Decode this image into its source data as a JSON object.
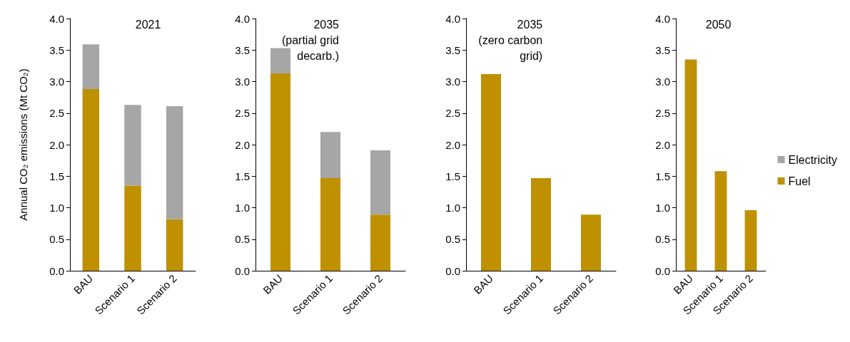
{
  "chart_data": [
    {
      "type": "bar",
      "title": "2021",
      "ylabel": "Annual CO₂ emissions (Mt CO₂)",
      "categories": [
        "BAU",
        "Scenario 1",
        "Scenario 2"
      ],
      "stacked": true,
      "series": [
        {
          "color": "#bf9000",
          "values": [
            2.88,
            1.35,
            0.82
          ]
        },
        {
          "color": "#a6a6a6",
          "values": [
            0.71,
            1.28,
            1.79
          ]
        }
      ],
      "ylim": [
        0,
        4
      ],
      "yticks": [
        {
          "value": 0,
          "label": "0.0"
        },
        0.5,
        {
          "value": 1,
          "label": "1.0"
        },
        1.5,
        {
          "value": 2,
          "label": "2.0"
        },
        2.5,
        {
          "value": 3,
          "label": "3.0"
        },
        3.5,
        {
          "value": 4,
          "label": "4.0"
        }
      ],
      "grid": false,
      "legend": false
    },
    {
      "type": "bar",
      "title": "2035\n(partial grid\ndecarb.)",
      "categories": [
        "BAU",
        "Scenario 1",
        "Scenario 2"
      ],
      "stacked": true,
      "series": [
        {
          "color": "#bf9000",
          "values": [
            3.13,
            1.47,
            0.89
          ]
        },
        {
          "color": "#a6a6a6",
          "values": [
            0.4,
            0.73,
            1.02
          ]
        }
      ],
      "ylim": [
        0,
        4
      ],
      "yticks": [
        {
          "value": 0,
          "label": "0.0"
        },
        0.5,
        {
          "value": 1,
          "label": "1.0"
        },
        1.5,
        {
          "value": 2,
          "label": "2.0"
        },
        2.5,
        {
          "value": 3,
          "label": "3.0"
        },
        3.5,
        {
          "value": 4,
          "label": "4.0"
        }
      ],
      "grid": false,
      "legend": false
    },
    {
      "type": "bar",
      "title": "2035\n(zero carbon\ngrid)",
      "categories": [
        "BAU",
        "Scenario 1",
        "Scenario 2"
      ],
      "stacked": true,
      "series": [
        {
          "color": "#bf9000",
          "values": [
            3.12,
            1.47,
            0.89
          ]
        }
      ],
      "ylim": [
        0,
        4
      ],
      "yticks": [
        {
          "value": 0,
          "label": "0.0"
        },
        0.5,
        {
          "value": 1,
          "label": "1.0"
        },
        1.5,
        {
          "value": 2,
          "label": "2.0"
        },
        2.5,
        {
          "value": 3,
          "label": "3.0"
        },
        3.5,
        {
          "value": 4,
          "label": "4.0"
        }
      ],
      "grid": false,
      "legend": false
    },
    {
      "type": "bar",
      "title": "2050",
      "categories": [
        "BAU",
        "Scenario 1",
        "Scenario 2"
      ],
      "stacked": true,
      "series": [
        {
          "name": "Fuel",
          "color": "#bf9000",
          "values": [
            3.35,
            1.58,
            0.96
          ]
        },
        {
          "name": "Electricity",
          "color": "#a6a6a6",
          "values": [
            0,
            0,
            0
          ]
        }
      ],
      "ylim": [
        0,
        4
      ],
      "yticks": [
        {
          "value": 0,
          "label": "0.0"
        },
        0.5,
        {
          "value": 1,
          "label": "1.0"
        },
        1.5,
        {
          "value": 2,
          "label": "2.0"
        },
        2.5,
        {
          "value": 3,
          "label": "3.0"
        },
        3.5,
        {
          "value": 4,
          "label": "4.0"
        }
      ],
      "grid": false,
      "legend": "right"
    }
  ]
}
